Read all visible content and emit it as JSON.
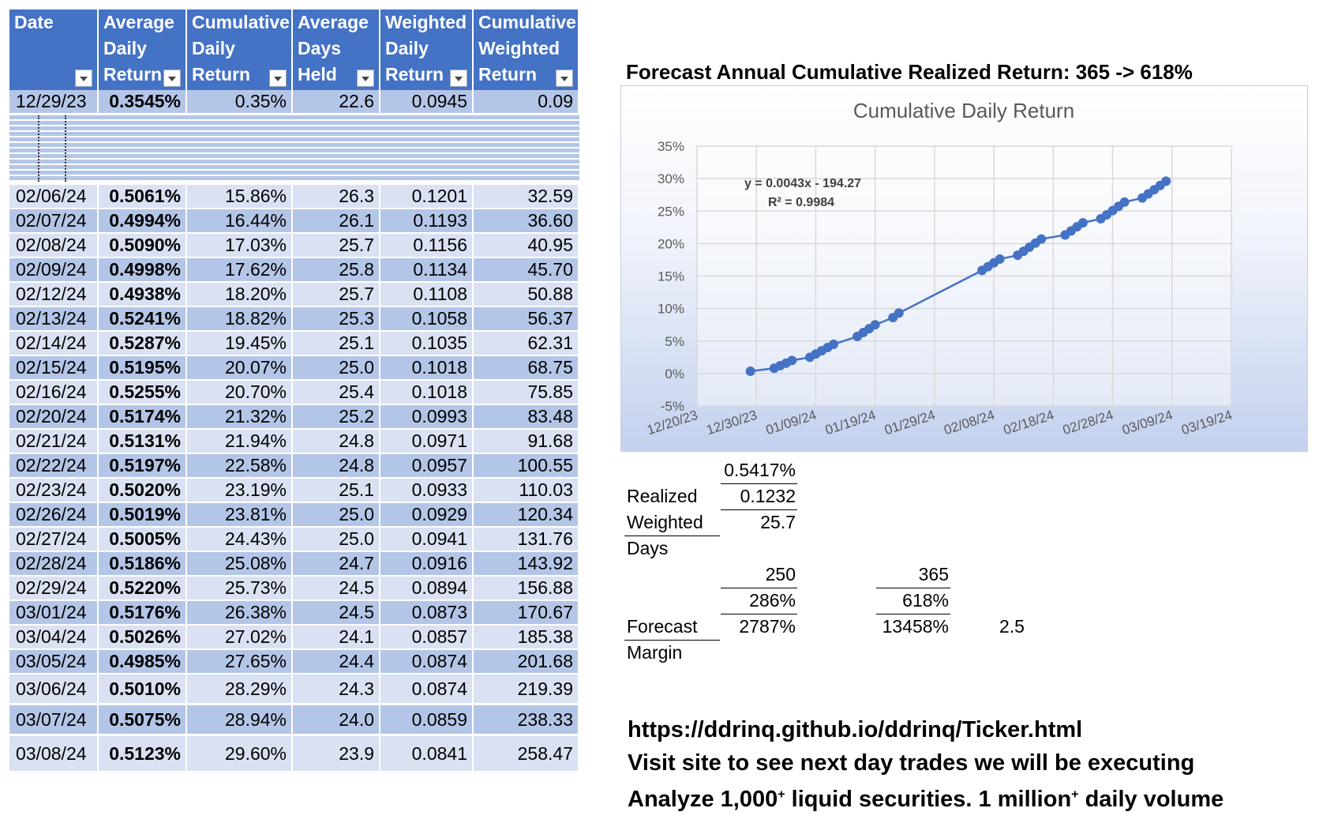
{
  "table": {
    "headers": [
      {
        "lines": [
          "",
          "",
          "Date"
        ]
      },
      {
        "lines": [
          "Average",
          "Daily",
          "Return"
        ]
      },
      {
        "lines": [
          "Cumulative",
          "Daily",
          "Return"
        ]
      },
      {
        "lines": [
          "Average",
          "Days",
          "Held"
        ]
      },
      {
        "lines": [
          "Weighted",
          "Daily",
          "Return"
        ]
      },
      {
        "lines": [
          "Cumulative",
          "Weighted",
          "Return"
        ]
      }
    ],
    "first_row": [
      "12/29/23",
      "0.3545%",
      "0.35%",
      "22.6",
      "0.0945",
      "0.09"
    ],
    "rows": [
      [
        "02/06/24",
        "0.5061%",
        "15.86%",
        "26.3",
        "0.1201",
        "32.59"
      ],
      [
        "02/07/24",
        "0.4994%",
        "16.44%",
        "26.1",
        "0.1193",
        "36.60"
      ],
      [
        "02/08/24",
        "0.5090%",
        "17.03%",
        "25.7",
        "0.1156",
        "40.95"
      ],
      [
        "02/09/24",
        "0.4998%",
        "17.62%",
        "25.8",
        "0.1134",
        "45.70"
      ],
      [
        "02/12/24",
        "0.4938%",
        "18.20%",
        "25.7",
        "0.1108",
        "50.88"
      ],
      [
        "02/13/24",
        "0.5241%",
        "18.82%",
        "25.3",
        "0.1058",
        "56.37"
      ],
      [
        "02/14/24",
        "0.5287%",
        "19.45%",
        "25.1",
        "0.1035",
        "62.31"
      ],
      [
        "02/15/24",
        "0.5195%",
        "20.07%",
        "25.0",
        "0.1018",
        "68.75"
      ],
      [
        "02/16/24",
        "0.5255%",
        "20.70%",
        "25.4",
        "0.1018",
        "75.85"
      ],
      [
        "02/20/24",
        "0.5174%",
        "21.32%",
        "25.2",
        "0.0993",
        "83.48"
      ],
      [
        "02/21/24",
        "0.5131%",
        "21.94%",
        "24.8",
        "0.0971",
        "91.68"
      ],
      [
        "02/22/24",
        "0.5197%",
        "22.58%",
        "24.8",
        "0.0957",
        "100.55"
      ],
      [
        "02/23/24",
        "0.5020%",
        "23.19%",
        "25.1",
        "0.0933",
        "110.03"
      ],
      [
        "02/26/24",
        "0.5019%",
        "23.81%",
        "25.0",
        "0.0929",
        "120.34"
      ],
      [
        "02/27/24",
        "0.5005%",
        "24.43%",
        "25.0",
        "0.0941",
        "131.76"
      ],
      [
        "02/28/24",
        "0.5186%",
        "25.08%",
        "24.7",
        "0.0916",
        "143.92"
      ],
      [
        "02/29/24",
        "0.5220%",
        "25.73%",
        "24.5",
        "0.0894",
        "156.88"
      ],
      [
        "03/01/24",
        "0.5176%",
        "26.38%",
        "24.5",
        "0.0873",
        "170.67"
      ],
      [
        "03/04/24",
        "0.5026%",
        "27.02%",
        "24.1",
        "0.0857",
        "185.38"
      ],
      [
        "03/05/24",
        "0.4985%",
        "27.65%",
        "24.4",
        "0.0874",
        "201.68"
      ],
      [
        "03/06/24",
        "0.5010%",
        "28.29%",
        "24.3",
        "0.0874",
        "219.39"
      ],
      [
        "03/07/24",
        "0.5075%",
        "28.94%",
        "24.0",
        "0.0859",
        "238.33"
      ],
      [
        "03/08/24",
        "0.5123%",
        "29.60%",
        "23.9",
        "0.0841",
        "258.47"
      ]
    ]
  },
  "forecast_title": "Forecast Annual Cumulative Realized Return: 365 -> 618%",
  "stats": {
    "avg": "0.5417%",
    "realized_label": "Realized",
    "realized_val": "0.1232",
    "weighted_label": "Weighted",
    "weighted_val": "25.7",
    "days_label": "Days",
    "n250": "250",
    "n365": "365",
    "p286": "286%",
    "p618": "618%",
    "forecast_label": "Forecast",
    "f2787": "2787%",
    "f13458": "13458%",
    "f2_5": "2.5",
    "margin_label": "Margin"
  },
  "footer": {
    "url": "https://ddrinq.github.io/ddrinq/Ticker.html",
    "visit": "Visit site to see next day trades we will be executing",
    "analyze_a": "Analyze 1,000",
    "analyze_b": " liquid securities.  1 million",
    "analyze_c": " daily volume",
    "sup": "+"
  },
  "colors": {
    "header": "#4472c4",
    "band_light": "#d9e1f2",
    "band_dark": "#b4c6e7",
    "series": "#4472c4"
  },
  "chart_data": {
    "type": "scatter",
    "title": "Cumulative Daily Return",
    "xlabel": "",
    "ylabel": "",
    "ylim": [
      -0.05,
      0.35
    ],
    "y_ticks": [
      "-5%",
      "0%",
      "5%",
      "10%",
      "15%",
      "20%",
      "25%",
      "30%",
      "35%"
    ],
    "x_ticks": [
      "12/20/23",
      "12/30/23",
      "01/09/24",
      "01/19/24",
      "01/29/24",
      "02/08/24",
      "02/18/24",
      "02/28/24",
      "03/09/24",
      "03/19/24"
    ],
    "xlim": [
      "12/20/23",
      "03/19/24"
    ],
    "grid": true,
    "trendline": {
      "equation": "y = 0.0043x - 194.27",
      "r2": "R² = 0.9984"
    },
    "series": [
      {
        "x": [
          "12/29/23",
          "01/02/24",
          "01/03/24",
          "01/04/24",
          "01/05/24",
          "01/08/24",
          "01/09/24",
          "01/10/24",
          "01/11/24",
          "01/12/24",
          "01/16/24",
          "01/17/24",
          "01/18/24",
          "01/19/24",
          "01/22/24",
          "01/23/24",
          "02/06/24",
          "02/07/24",
          "02/08/24",
          "02/09/24",
          "02/12/24",
          "02/13/24",
          "02/14/24",
          "02/15/24",
          "02/16/24",
          "02/20/24",
          "02/21/24",
          "02/22/24",
          "02/23/24",
          "02/26/24",
          "02/27/24",
          "02/28/24",
          "02/29/24",
          "03/01/24",
          "03/04/24",
          "03/05/24",
          "03/06/24",
          "03/07/24",
          "03/08/24"
        ],
        "y": [
          0.0035,
          0.008,
          0.012,
          0.016,
          0.02,
          0.025,
          0.03,
          0.035,
          0.04,
          0.045,
          0.057,
          0.063,
          0.069,
          0.075,
          0.086,
          0.093,
          0.1586,
          0.1644,
          0.1703,
          0.1762,
          0.182,
          0.1882,
          0.1945,
          0.2007,
          0.207,
          0.2132,
          0.2194,
          0.2258,
          0.2319,
          0.2381,
          0.2443,
          0.2508,
          0.2573,
          0.2638,
          0.2702,
          0.2765,
          0.2829,
          0.2894,
          0.296
        ]
      }
    ]
  }
}
